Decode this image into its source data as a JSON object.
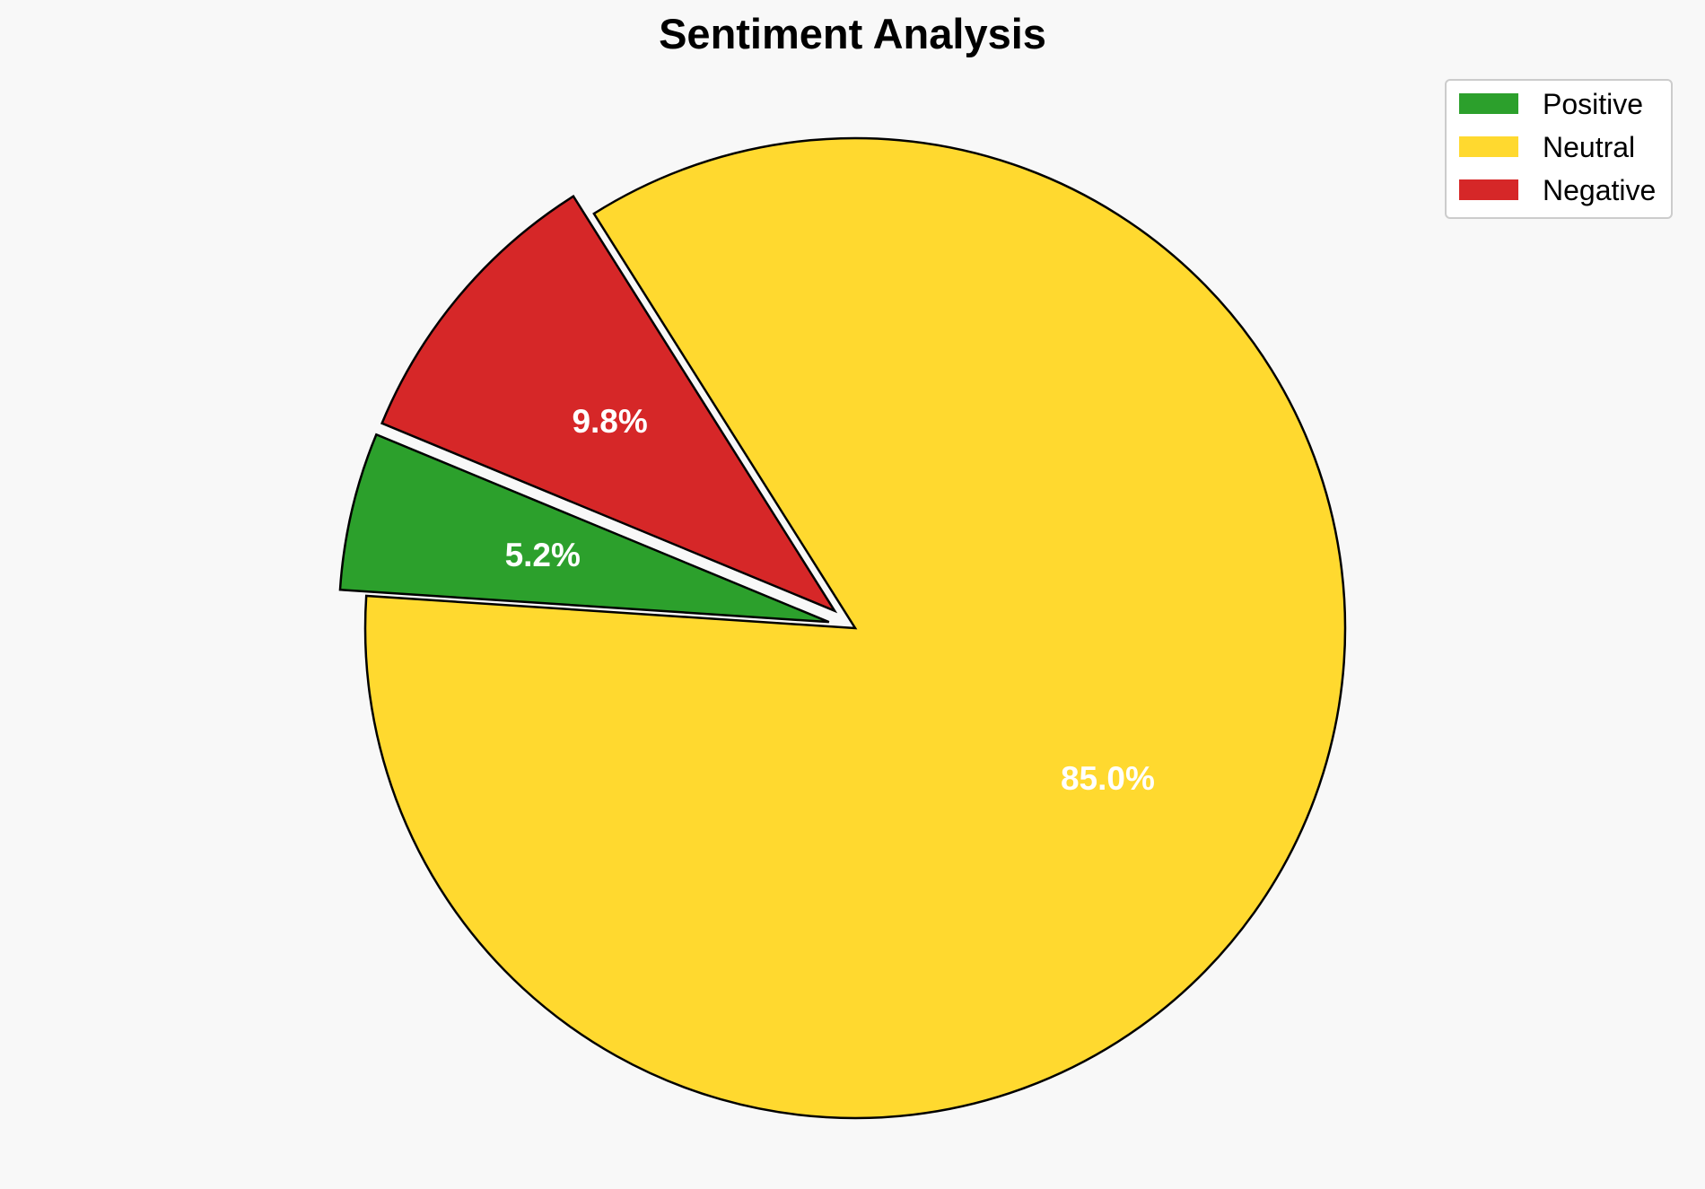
{
  "chart_data": {
    "type": "pie",
    "title": "Sentiment Analysis",
    "categories": [
      "Positive",
      "Neutral",
      "Negative"
    ],
    "values": [
      5.2,
      85.0,
      9.8
    ],
    "labels": [
      "5.2%",
      "85.0%",
      "9.8%"
    ],
    "colors": [
      "#2ca02c",
      "#ffd92f",
      "#d62728"
    ],
    "exploded": [
      true,
      false,
      true
    ],
    "start_angle_deg": 157.5,
    "direction": "counterclockwise",
    "edge_color": "#000000",
    "legend": {
      "placement": "top-right",
      "entries": [
        "Positive",
        "Neutral",
        "Negative"
      ]
    },
    "background": "#f8f8f8"
  }
}
